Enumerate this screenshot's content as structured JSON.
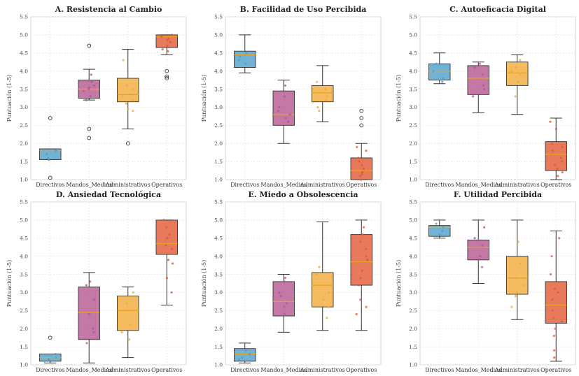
{
  "chart_data": [
    {
      "type": "box",
      "title": "A. Resistencia al Cambio",
      "ylabel": "Puntuación (1-5)",
      "ylim": [
        1.0,
        5.5
      ],
      "yticks": [
        "1.0",
        "1.5",
        "2.0",
        "2.5",
        "3.0",
        "3.5",
        "4.0",
        "4.5",
        "5.0",
        "5.5"
      ],
      "grid": true,
      "categories": [
        "Directivos",
        "Mandos_Medios",
        "Administrativos",
        "Operativos"
      ],
      "boxes": [
        {
          "min": 1.55,
          "q1": 1.55,
          "median": 1.8,
          "q3": 1.85,
          "max": 1.85,
          "outliers": [
            2.7,
            1.05
          ]
        },
        {
          "min": 3.2,
          "q1": 3.25,
          "median": 3.5,
          "q3": 3.75,
          "max": 4.05,
          "outliers": [
            4.7,
            2.4,
            2.15
          ]
        },
        {
          "min": 2.4,
          "q1": 3.15,
          "median": 3.35,
          "q3": 3.8,
          "max": 4.6,
          "outliers": [
            2.0
          ]
        },
        {
          "min": 4.45,
          "q1": 4.65,
          "median": 4.95,
          "q3": 5.0,
          "max": 5.0,
          "outliers": [
            4.0,
            3.85,
            3.8
          ]
        }
      ],
      "points": [
        [
          1.6,
          1.7,
          1.8,
          1.55
        ],
        [
          3.3,
          3.45,
          3.55,
          3.6,
          3.2,
          3.7,
          3.9,
          3.5
        ],
        [
          2.9,
          3.2,
          3.3,
          3.6,
          3.5,
          4.3,
          3.1,
          2.95
        ],
        [
          4.6,
          4.8,
          4.9,
          5.0,
          4.7,
          4.55,
          4.95,
          4.85
        ]
      ]
    },
    {
      "type": "box",
      "title": "B. Facilidad de Uso Percibida",
      "ylabel": "Puntuación (1-5)",
      "ylim": [
        1.0,
        5.5
      ],
      "yticks": [
        "1.0",
        "1.5",
        "2.0",
        "2.5",
        "3.0",
        "3.5",
        "4.0",
        "4.5",
        "5.0",
        "5.5"
      ],
      "grid": true,
      "categories": [
        "Directivos",
        "Mandos_Medios",
        "Administrativos",
        "Operativos"
      ],
      "boxes": [
        {
          "min": 3.95,
          "q1": 4.1,
          "median": 4.45,
          "q3": 4.55,
          "max": 5.0,
          "outliers": []
        },
        {
          "min": 2.0,
          "q1": 2.5,
          "median": 2.8,
          "q3": 3.45,
          "max": 3.75,
          "outliers": []
        },
        {
          "min": 2.6,
          "q1": 3.15,
          "median": 3.4,
          "q3": 3.6,
          "max": 4.15,
          "outliers": []
        },
        {
          "min": 1.0,
          "q1": 1.0,
          "median": 1.25,
          "q3": 1.6,
          "max": 2.0,
          "outliers": [
            2.9,
            2.7,
            2.5
          ]
        }
      ],
      "points": [
        [
          4.2,
          4.4,
          4.5,
          4.3
        ],
        [
          2.6,
          2.8,
          3.0,
          3.3,
          3.6,
          2.7,
          2.9
        ],
        [
          3.0,
          3.3,
          3.5,
          3.7,
          2.9,
          3.4,
          3.2
        ],
        [
          1.1,
          1.3,
          1.5,
          1.2,
          1.8,
          1.4,
          1.0,
          1.6,
          1.9,
          1.15
        ]
      ]
    },
    {
      "type": "box",
      "title": "C. Autoeficacia Digital",
      "ylabel": "Puntuación (1-5)",
      "ylim": [
        1.0,
        5.5
      ],
      "yticks": [
        "1.0",
        "1.5",
        "2.0",
        "2.5",
        "3.0",
        "3.5",
        "4.0",
        "4.5",
        "5.0",
        "5.5"
      ],
      "grid": true,
      "categories": [
        "Directivos",
        "Mandos_Medios",
        "Administrativos",
        "Operativos"
      ],
      "boxes": [
        {
          "min": 3.65,
          "q1": 3.75,
          "median": 4.0,
          "q3": 4.2,
          "max": 4.5,
          "outliers": []
        },
        {
          "min": 2.85,
          "q1": 3.35,
          "median": 3.8,
          "q3": 4.15,
          "max": 4.25,
          "outliers": []
        },
        {
          "min": 2.8,
          "q1": 3.6,
          "median": 3.95,
          "q3": 4.25,
          "max": 4.45,
          "outliers": []
        },
        {
          "min": 1.0,
          "q1": 1.25,
          "median": 1.7,
          "q3": 2.05,
          "max": 2.7,
          "outliers": []
        }
      ],
      "points": [
        [
          3.8,
          4.0,
          4.2,
          3.7
        ],
        [
          3.3,
          3.6,
          3.9,
          4.1,
          3.5,
          4.2
        ],
        [
          3.3,
          3.9,
          4.1,
          4.3,
          3.7,
          4.0
        ],
        [
          1.1,
          1.3,
          1.5,
          1.8,
          2.0,
          2.4,
          1.6,
          1.2,
          2.6,
          1.9,
          1.4
        ]
      ]
    },
    {
      "type": "box",
      "title": "D. Ansiedad Tecnológica",
      "ylabel": "Puntuación (1-5)",
      "ylim": [
        1.0,
        5.5
      ],
      "yticks": [
        "1.0",
        "1.5",
        "2.0",
        "2.5",
        "3.0",
        "3.5",
        "4.0",
        "4.5",
        "5.0",
        "5.5"
      ],
      "grid": true,
      "categories": [
        "Directivos",
        "Mandos_Medios",
        "Administrativos",
        "Operativos"
      ],
      "boxes": [
        {
          "min": 1.05,
          "q1": 1.1,
          "median": 1.2,
          "q3": 1.3,
          "max": 1.3,
          "outliers": [
            1.75
          ]
        },
        {
          "min": 1.05,
          "q1": 1.7,
          "median": 2.45,
          "q3": 3.15,
          "max": 3.55,
          "outliers": []
        },
        {
          "min": 1.2,
          "q1": 1.95,
          "median": 2.5,
          "q3": 2.9,
          "max": 3.15,
          "outliers": []
        },
        {
          "min": 2.65,
          "q1": 4.05,
          "median": 4.35,
          "q3": 5.0,
          "max": 5.0,
          "outliers": []
        }
      ],
      "points": [
        [
          1.1,
          1.2,
          1.3,
          1.15
        ],
        [
          1.6,
          2.0,
          2.4,
          2.8,
          3.2,
          3.3,
          1.9
        ],
        [
          1.7,
          2.1,
          2.5,
          2.7,
          3.0,
          1.9
        ],
        [
          3.0,
          3.4,
          3.9,
          4.2,
          4.5,
          4.8,
          5.0,
          4.6,
          3.8,
          4.3
        ]
      ]
    },
    {
      "type": "box",
      "title": "E. Miedo a Obsolescencia",
      "ylabel": "Puntuación (1-5)",
      "ylim": [
        1.0,
        5.5
      ],
      "yticks": [
        "1.0",
        "1.5",
        "2.0",
        "2.5",
        "3.0",
        "3.5",
        "4.0",
        "4.5",
        "5.0",
        "5.5"
      ],
      "grid": true,
      "categories": [
        "Directivos",
        "Mandos_Medios",
        "Administrativos",
        "Operativos"
      ],
      "boxes": [
        {
          "min": 1.05,
          "q1": 1.1,
          "median": 1.3,
          "q3": 1.45,
          "max": 1.6,
          "outliers": []
        },
        {
          "min": 1.9,
          "q1": 2.35,
          "median": 2.75,
          "q3": 3.3,
          "max": 3.5,
          "outliers": []
        },
        {
          "min": 1.95,
          "q1": 2.6,
          "median": 3.2,
          "q3": 3.55,
          "max": 4.95,
          "outliers": []
        },
        {
          "min": 1.95,
          "q1": 3.2,
          "median": 3.85,
          "q3": 4.6,
          "max": 5.0,
          "outliers": []
        }
      ],
      "points": [
        [
          1.2,
          1.3,
          1.4,
          1.15
        ],
        [
          2.4,
          2.7,
          3.0,
          3.3,
          3.4,
          2.6,
          2.9
        ],
        [
          2.3,
          2.8,
          3.2,
          3.5,
          3.7,
          3.0,
          2.6
        ],
        [
          2.4,
          2.8,
          3.2,
          3.6,
          4.0,
          4.4,
          4.8,
          3.4,
          4.2,
          2.6,
          4.6,
          3.9
        ]
      ]
    },
    {
      "type": "box",
      "title": "F. Utilidad Percibida",
      "ylabel": "Puntuación (1-5)",
      "ylim": [
        1.0,
        5.5
      ],
      "yticks": [
        "1.0",
        "1.5",
        "2.0",
        "2.5",
        "3.0",
        "3.5",
        "4.0",
        "4.5",
        "5.0",
        "5.5"
      ],
      "grid": true,
      "categories": [
        "Directivos",
        "Mandos_Medios",
        "Administrativos",
        "Operativos"
      ],
      "boxes": [
        {
          "min": 4.5,
          "q1": 4.55,
          "median": 4.8,
          "q3": 4.85,
          "max": 5.0,
          "outliers": []
        },
        {
          "min": 3.25,
          "q1": 3.9,
          "median": 4.25,
          "q3": 4.45,
          "max": 5.0,
          "outliers": []
        },
        {
          "min": 2.25,
          "q1": 2.95,
          "median": 3.4,
          "q3": 4.0,
          "max": 5.0,
          "outliers": []
        },
        {
          "min": 1.1,
          "q1": 2.15,
          "median": 2.65,
          "q3": 3.3,
          "max": 4.7,
          "outliers": []
        }
      ],
      "points": [
        [
          4.6,
          4.8,
          4.9,
          4.7
        ],
        [
          3.7,
          4.0,
          4.3,
          4.5,
          4.8,
          3.9
        ],
        [
          2.6,
          3.0,
          3.4,
          3.8,
          4.4,
          3.2,
          2.9
        ],
        [
          1.4,
          1.8,
          2.2,
          2.5,
          2.8,
          3.1,
          3.5,
          4.0,
          4.5,
          2.3,
          3.0,
          2.0,
          1.2
        ]
      ]
    }
  ],
  "colors": [
    "#4a9cc9",
    "#b4528d",
    "#f2a833",
    "#e0552f"
  ]
}
